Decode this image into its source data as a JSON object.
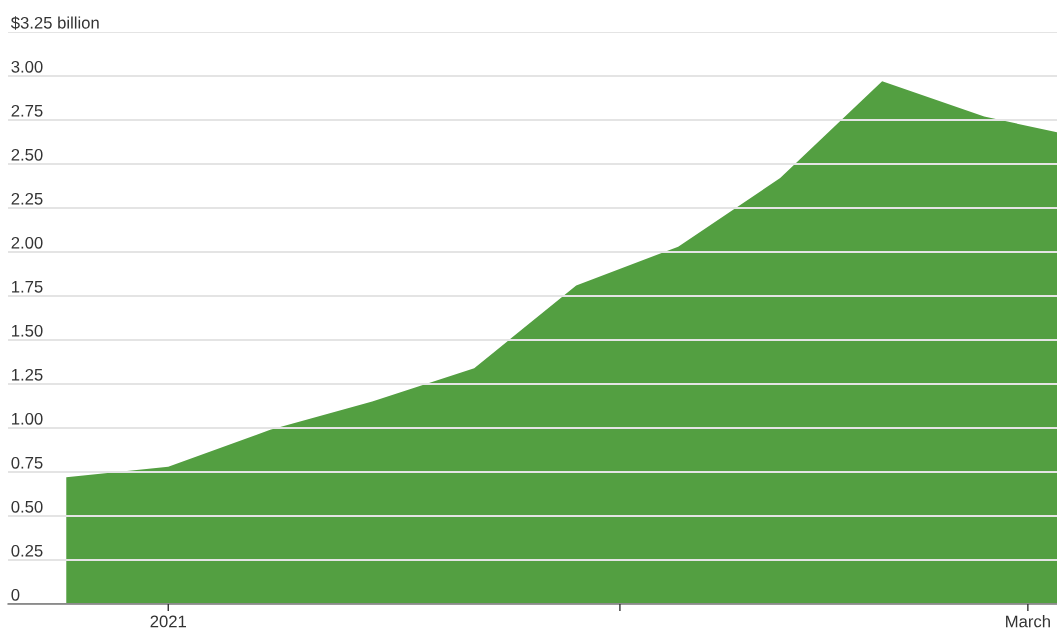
{
  "chart_data": {
    "type": "area",
    "x": [
      "2020-12-25",
      "2021-01-01",
      "2021-01-08",
      "2021-01-15",
      "2021-01-22",
      "2021-01-29",
      "2021-02-05",
      "2021-02-12",
      "2021-02-19",
      "2021-02-26",
      "2021-03-03"
    ],
    "series": [
      {
        "color": "#539f41",
        "values": [
          0.72,
          0.78,
          0.99,
          1.15,
          1.34,
          1.81,
          2.03,
          2.42,
          2.97,
          2.77,
          2.68
        ]
      }
    ],
    "xlim": [
      "2020-12-21",
      "2021-03-03"
    ],
    "xticks": [
      {
        "value": "2021-01-01",
        "label": "2021"
      },
      {
        "value": "2021-02-01",
        "label": null
      },
      {
        "value": "2021-03-01",
        "label": "March"
      }
    ],
    "ylim": [
      0,
      3.25
    ],
    "yticks": [
      0,
      {
        "value": 0.25,
        "label": "0.25"
      },
      {
        "value": 0.5,
        "label": "0.50"
      },
      {
        "value": 0.75,
        "label": "0.75"
      },
      {
        "value": 1,
        "label": "1.00"
      },
      {
        "value": 1.25,
        "label": "1.25"
      },
      {
        "value": 1.5,
        "label": "1.50"
      },
      {
        "value": 1.75,
        "label": "1.75"
      },
      {
        "value": 2,
        "label": "2.00"
      },
      {
        "value": 2.25,
        "label": "2.25"
      },
      {
        "value": 2.5,
        "label": "2.50"
      },
      {
        "value": 2.75,
        "label": "2.75"
      },
      {
        "value": 3,
        "label": "3.00"
      },
      {
        "value": 3.25,
        "label": "$3.25 billion"
      }
    ],
    "grid": "y"
  }
}
